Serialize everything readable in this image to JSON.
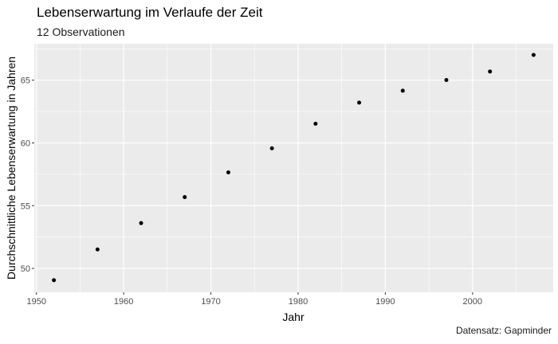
{
  "chart_data": {
    "type": "scatter",
    "title": "Lebenserwartung im Verlaufe der Zeit",
    "subtitle": "12 Observationen",
    "caption": "Datensatz: Gapminder",
    "xlabel": "Jahr",
    "ylabel": "Durchschnittliche Lebenserwartung in Jahren",
    "xlim": [
      1949.75,
      2009.25
    ],
    "ylim": [
      48.1,
      67.9
    ],
    "x_ticks": [
      1950,
      1960,
      1970,
      1980,
      1990,
      2000
    ],
    "y_ticks": [
      50,
      55,
      60,
      65
    ],
    "grid": true,
    "panel_background": "#ebebeb",
    "point_color": "#000000",
    "x": [
      1952,
      1957,
      1962,
      1967,
      1972,
      1977,
      1982,
      1987,
      1992,
      1997,
      2002,
      2007
    ],
    "y": [
      49.06,
      51.51,
      53.61,
      55.68,
      57.65,
      59.57,
      61.53,
      63.21,
      64.16,
      65.01,
      65.69,
      67.01
    ]
  }
}
